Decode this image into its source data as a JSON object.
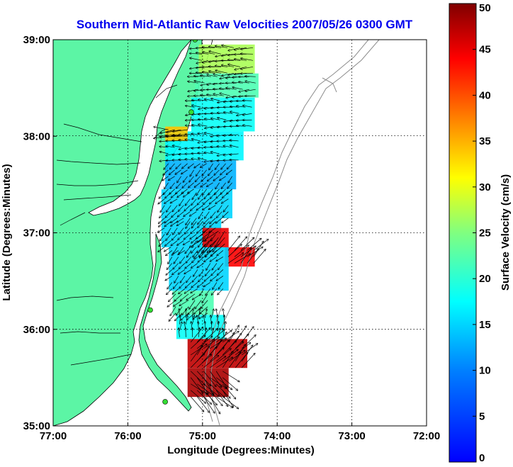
{
  "chart_data": {
    "type": "vector-field",
    "title": "Southern Mid-Atlantic Raw Velocities 2007/05/26 0300 GMT",
    "xlabel": "Longitude (Degrees:Minutes)",
    "ylabel": "Latitude (Degrees:Minutes)",
    "xlim": [
      -77,
      -72
    ],
    "ylim": [
      35,
      39
    ],
    "x_ticks": [
      {
        "value": -77,
        "label": "77:00"
      },
      {
        "value": -76,
        "label": "76:00"
      },
      {
        "value": -75,
        "label": "75:00"
      },
      {
        "value": -74,
        "label": "74:00"
      },
      {
        "value": -73,
        "label": "73:00"
      },
      {
        "value": -72,
        "label": "72:00"
      }
    ],
    "y_ticks": [
      {
        "value": 35,
        "label": "35:00"
      },
      {
        "value": 36,
        "label": "36:00"
      },
      {
        "value": 37,
        "label": "37:00"
      },
      {
        "value": 38,
        "label": "38:00"
      },
      {
        "value": 39,
        "label": "39:00"
      }
    ],
    "grid": "dotted",
    "colorbar": {
      "label": "Surface Velocity (cm/s)",
      "range": [
        0,
        50
      ],
      "ticks": [
        0,
        5,
        10,
        15,
        20,
        25,
        30,
        35,
        40,
        45,
        50
      ],
      "colormap": "jet"
    },
    "land_color": "#5cf5a5",
    "water_color": "#ffffff",
    "coast_color": "#000000",
    "site_marker_color": "#33dd33",
    "station_sites": [
      {
        "lon": -75.1,
        "lat": 39.0
      },
      {
        "lon": -75.15,
        "lat": 38.25
      },
      {
        "lon": -75.7,
        "lat": 36.2
      },
      {
        "lon": -75.5,
        "lat": 35.25
      }
    ],
    "velocity_regions": [
      {
        "lat": [
          38.65,
          38.95
        ],
        "lon": [
          -75.05,
          -74.3
        ],
        "speed_cm_s": 27,
        "direction": "west"
      },
      {
        "lat": [
          38.4,
          38.65
        ],
        "lon": [
          -75.1,
          -74.25
        ],
        "speed_cm_s": 22,
        "direction": "west"
      },
      {
        "lat": [
          38.05,
          38.4
        ],
        "lon": [
          -75.15,
          -74.3
        ],
        "speed_cm_s": 18,
        "direction": "west"
      },
      {
        "lat": [
          37.75,
          38.05
        ],
        "lon": [
          -75.5,
          -74.45
        ],
        "speed_cm_s": 17,
        "direction": "west"
      },
      {
        "lat": [
          37.95,
          38.1
        ],
        "lon": [
          -75.5,
          -75.2
        ],
        "speed_cm_s": 34,
        "direction": "west"
      },
      {
        "lat": [
          37.45,
          37.75
        ],
        "lon": [
          -75.5,
          -74.55
        ],
        "speed_cm_s": 13,
        "direction": "southwest"
      },
      {
        "lat": [
          37.15,
          37.45
        ],
        "lon": [
          -75.55,
          -74.6
        ],
        "speed_cm_s": 15,
        "direction": "southwest"
      },
      {
        "lat": [
          36.85,
          37.15
        ],
        "lon": [
          -75.55,
          -74.75
        ],
        "speed_cm_s": 15,
        "direction": "southwest"
      },
      {
        "lat": [
          36.85,
          37.05
        ],
        "lon": [
          -75.0,
          -74.65
        ],
        "speed_cm_s": 45,
        "direction": "southwest"
      },
      {
        "lat": [
          36.65,
          36.85
        ],
        "lon": [
          -74.7,
          -74.3
        ],
        "speed_cm_s": 44,
        "direction": "northeast"
      },
      {
        "lat": [
          36.4,
          36.85
        ],
        "lon": [
          -75.45,
          -74.65
        ],
        "speed_cm_s": 15,
        "direction": "southwest"
      },
      {
        "lat": [
          36.15,
          36.4
        ],
        "lon": [
          -75.4,
          -74.85
        ],
        "speed_cm_s": 22,
        "direction": "southwest"
      },
      {
        "lat": [
          35.9,
          36.15
        ],
        "lon": [
          -75.35,
          -74.7
        ],
        "speed_cm_s": 18,
        "direction": "north"
      },
      {
        "lat": [
          35.6,
          35.9
        ],
        "lon": [
          -75.2,
          -74.4
        ],
        "speed_cm_s": 47,
        "direction": "northeast"
      },
      {
        "lat": [
          35.3,
          35.6
        ],
        "lon": [
          -75.2,
          -74.65
        ],
        "speed_cm_s": 48,
        "direction": "southeast"
      }
    ]
  }
}
